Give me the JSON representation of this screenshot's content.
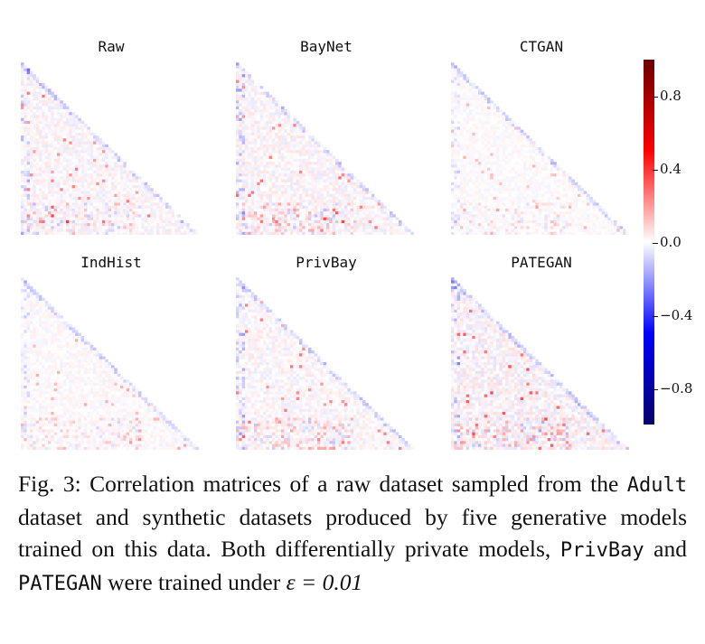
{
  "chart_data": [
    {
      "type": "heatmap",
      "title": "Raw"
    },
    {
      "type": "heatmap",
      "title": "BayNet"
    },
    {
      "type": "heatmap",
      "title": "CTGAN"
    },
    {
      "type": "heatmap",
      "title": "IndHist"
    },
    {
      "type": "heatmap",
      "title": "PrivBay"
    },
    {
      "type": "heatmap",
      "title": "PATEGAN"
    }
  ],
  "colorbar": {
    "range": [
      -1,
      1
    ],
    "ticks": [
      "0.8",
      "0.4",
      "0.0",
      "−0.4",
      "−0.8"
    ],
    "tick_values": [
      0.8,
      0.4,
      0.0,
      -0.4,
      -0.8
    ],
    "colors": {
      "neg": "#08006a",
      "mid": "#ffffff",
      "pos": "#6a0000"
    }
  },
  "caption": {
    "prefix": "Fig. 3: Correlation matrices of a raw dataset sampled from the ",
    "dataset": "Adult",
    "mid1": " dataset and synthetic datasets produced by five generative models trained on this data. Both differentially private models, ",
    "model1": "PrivBay",
    "and": " and ",
    "model2": "PATEGAN",
    "mid2": " were trained under ",
    "epsilon": "ε = 0.01"
  }
}
